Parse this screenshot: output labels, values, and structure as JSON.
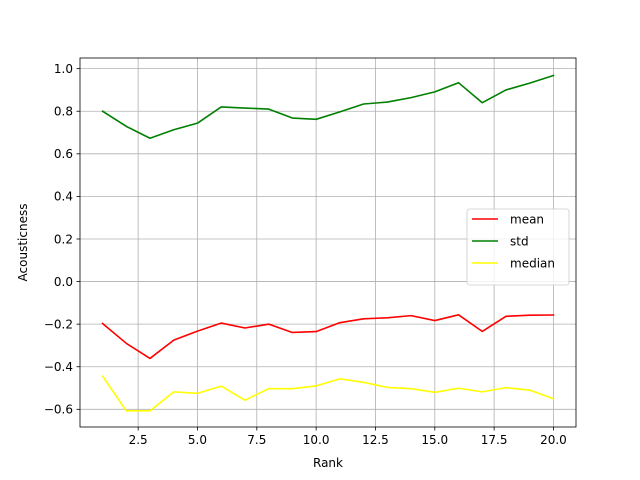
{
  "chart_data": {
    "type": "line",
    "title": "",
    "xlabel": "Rank",
    "ylabel": "Acousticness",
    "xlim": [
      0.05,
      20.95
    ],
    "ylim": [
      -0.683,
      1.05
    ],
    "xticks": [
      2.5,
      5.0,
      7.5,
      10.0,
      12.5,
      15.0,
      17.5,
      20.0
    ],
    "xtick_labels": [
      "2.5",
      "5.0",
      "7.5",
      "10.0",
      "12.5",
      "15.0",
      "17.5",
      "20.0"
    ],
    "yticks": [
      -0.6,
      -0.4,
      -0.2,
      0.0,
      0.2,
      0.4,
      0.6,
      0.8,
      1.0
    ],
    "ytick_labels": [
      "−0.6",
      "−0.4",
      "−0.2",
      "0.0",
      "0.2",
      "0.4",
      "0.6",
      "0.8",
      "1.0"
    ],
    "grid": true,
    "legend_position": "center-right",
    "x": [
      1,
      2,
      3,
      4,
      5,
      6,
      7,
      8,
      9,
      10,
      11,
      12,
      13,
      14,
      15,
      16,
      17,
      18,
      19,
      20
    ],
    "series": [
      {
        "name": "mean",
        "color": "#ff0000",
        "values": [
          -0.197,
          -0.29,
          -0.361,
          -0.275,
          -0.233,
          -0.195,
          -0.218,
          -0.2,
          -0.239,
          -0.235,
          -0.193,
          -0.175,
          -0.17,
          -0.16,
          -0.183,
          -0.156,
          -0.234,
          -0.163,
          -0.158,
          -0.157
        ]
      },
      {
        "name": "std",
        "color": "#008000",
        "values": [
          0.8,
          0.729,
          0.673,
          0.713,
          0.744,
          0.82,
          0.815,
          0.81,
          0.768,
          0.762,
          0.797,
          0.834,
          0.843,
          0.864,
          0.891,
          0.934,
          0.84,
          0.9,
          0.932,
          0.968
        ]
      },
      {
        "name": "median",
        "color": "#ffff00",
        "values": [
          -0.444,
          -0.607,
          -0.607,
          -0.518,
          -0.525,
          -0.491,
          -0.557,
          -0.503,
          -0.503,
          -0.49,
          -0.457,
          -0.473,
          -0.497,
          -0.503,
          -0.52,
          -0.501,
          -0.518,
          -0.498,
          -0.51,
          -0.55
        ]
      }
    ]
  }
}
